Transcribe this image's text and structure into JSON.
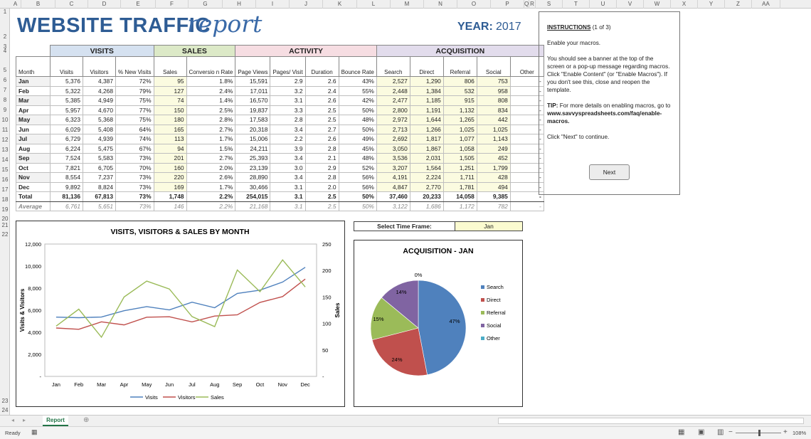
{
  "columns": [
    "A",
    "B",
    "C",
    "D",
    "E",
    "F",
    "G",
    "H",
    "I",
    "J",
    "K",
    "L",
    "M",
    "N",
    "O",
    "P",
    "Q",
    "R",
    "S",
    "T",
    "U",
    "V",
    "W",
    "X",
    "Y",
    "Z",
    "AA"
  ],
  "rows": [
    "1",
    "2",
    "3",
    "4",
    "5",
    "6",
    "7",
    "8",
    "9",
    "10",
    "11",
    "12",
    "13",
    "14",
    "15",
    "16",
    "17",
    "18",
    "19",
    "20",
    "21",
    "22",
    "23",
    "24"
  ],
  "title": {
    "main": "WEBSITE TRAFFIC",
    "script": "report"
  },
  "year": {
    "label": "YEAR:",
    "value": "2017"
  },
  "groups": {
    "visits": "VISITS",
    "sales": "SALES",
    "activity": "ACTIVITY",
    "acquisition": "ACQUISITION"
  },
  "headers": [
    "Month",
    "Visits",
    "Visitors",
    "% New Visits",
    "Sales",
    "Conversio n Rate",
    "Page Views",
    "Pages/ Visit",
    "Duration",
    "Bounce Rate",
    "Search",
    "Direct",
    "Referral",
    "Social",
    "Other"
  ],
  "table_rows": [
    [
      "Jan",
      "5,376",
      "4,387",
      "72%",
      "95",
      "1.8%",
      "15,591",
      "2.9",
      "2.6",
      "43%",
      "2,527",
      "1,290",
      "806",
      "753",
      "-"
    ],
    [
      "Feb",
      "5,322",
      "4,268",
      "79%",
      "127",
      "2.4%",
      "17,011",
      "3.2",
      "2.4",
      "55%",
      "2,448",
      "1,384",
      "532",
      "958",
      "-"
    ],
    [
      "Mar",
      "5,385",
      "4,949",
      "75%",
      "74",
      "1.4%",
      "16,570",
      "3.1",
      "2.6",
      "42%",
      "2,477",
      "1,185",
      "915",
      "808",
      "-"
    ],
    [
      "Apr",
      "5,957",
      "4,670",
      "77%",
      "150",
      "2.5%",
      "19,837",
      "3.3",
      "2.5",
      "50%",
      "2,800",
      "1,191",
      "1,132",
      "834",
      "-"
    ],
    [
      "May",
      "6,323",
      "5,368",
      "75%",
      "180",
      "2.8%",
      "17,583",
      "2.8",
      "2.5",
      "48%",
      "2,972",
      "1,644",
      "1,265",
      "442",
      "-"
    ],
    [
      "Jun",
      "6,029",
      "5,408",
      "64%",
      "165",
      "2.7%",
      "20,318",
      "3.4",
      "2.7",
      "50%",
      "2,713",
      "1,266",
      "1,025",
      "1,025",
      "-"
    ],
    [
      "Jul",
      "6,729",
      "4,939",
      "74%",
      "113",
      "1.7%",
      "15,006",
      "2.2",
      "2.6",
      "49%",
      "2,692",
      "1,817",
      "1,077",
      "1,143",
      "-"
    ],
    [
      "Aug",
      "6,224",
      "5,475",
      "67%",
      "94",
      "1.5%",
      "24,211",
      "3.9",
      "2.8",
      "45%",
      "3,050",
      "1,867",
      "1,058",
      "249",
      "-"
    ],
    [
      "Sep",
      "7,524",
      "5,583",
      "73%",
      "201",
      "2.7%",
      "25,393",
      "3.4",
      "2.1",
      "48%",
      "3,536",
      "2,031",
      "1,505",
      "452",
      "-"
    ],
    [
      "Oct",
      "7,821",
      "6,705",
      "70%",
      "160",
      "2.0%",
      "23,139",
      "3.0",
      "2.9",
      "52%",
      "3,207",
      "1,564",
      "1,251",
      "1,799",
      "-"
    ],
    [
      "Nov",
      "8,554",
      "7,237",
      "73%",
      "220",
      "2.6%",
      "28,890",
      "3.4",
      "2.8",
      "56%",
      "4,191",
      "2,224",
      "1,711",
      "428",
      "-"
    ],
    [
      "Dec",
      "9,892",
      "8,824",
      "73%",
      "169",
      "1.7%",
      "30,466",
      "3.1",
      "2.0",
      "56%",
      "4,847",
      "2,770",
      "1,781",
      "494",
      "-"
    ]
  ],
  "total_row": [
    "Total",
    "81,136",
    "67,813",
    "73%",
    "1,748",
    "2.2%",
    "254,015",
    "3.1",
    "2.5",
    "50%",
    "37,460",
    "20,233",
    "14,058",
    "9,385",
    "-"
  ],
  "average_row": [
    "Average",
    "6,761",
    "5,651",
    "73%",
    "146",
    "2.2%",
    "21,168",
    "3.1",
    "2.5",
    "50%",
    "3,122",
    "1,686",
    "1,172",
    "782",
    "-"
  ],
  "instructions": {
    "title": "INSTRUCTIONS",
    "step": "(1 of 3)",
    "p1": "Enable your macros.",
    "p2": "You should see a banner at the top of the screen or a pop-up message regarding macros. Click \"Enable Content\" (or \"Enable Macros\"). If you don't see this, close and reopen the template.",
    "tip_label": "TIP:",
    "tip_text": "For more details on enabling macros, go to",
    "tip_link": "www.savvyspreadsheets.com/faq/enable-macros.",
    "p4": "Click \"Next\" to continue.",
    "next_button": "Next"
  },
  "time_frame": {
    "label": "Select Time Frame:",
    "value": "Jan"
  },
  "chart_data": [
    {
      "type": "line",
      "title": "VISITS, VISITORS & SALES BY MONTH",
      "categories": [
        "Jan",
        "Feb",
        "Mar",
        "Apr",
        "May",
        "Jun",
        "Jul",
        "Aug",
        "Sep",
        "Oct",
        "Nov",
        "Dec"
      ],
      "ylabel": "Visits & Visitors",
      "y2label": "Sales",
      "ylim": [
        0,
        12000
      ],
      "y2lim": [
        0,
        250
      ],
      "y_ticks": [
        "-",
        "2,000",
        "4,000",
        "6,000",
        "8,000",
        "10,000",
        "12,000"
      ],
      "y2_ticks": [
        "-",
        "50",
        "100",
        "150",
        "200",
        "250"
      ],
      "series": [
        {
          "name": "Visits",
          "axis": "left",
          "color": "#4f81bd",
          "values": [
            5376,
            5322,
            5385,
            5957,
            6323,
            6029,
            6729,
            6224,
            7524,
            7821,
            8554,
            9892
          ]
        },
        {
          "name": "Visitors",
          "axis": "left",
          "color": "#c0504d",
          "values": [
            4387,
            4268,
            4949,
            4670,
            5368,
            5408,
            4939,
            5475,
            5583,
            6705,
            7237,
            8824
          ]
        },
        {
          "name": "Sales",
          "axis": "right",
          "color": "#9bbb59",
          "values": [
            95,
            127,
            74,
            150,
            180,
            165,
            113,
            94,
            201,
            160,
            220,
            169
          ]
        }
      ],
      "legend": "bottom"
    },
    {
      "type": "pie",
      "title": "ACQUISITION - JAN",
      "labels": [
        "Search",
        "Direct",
        "Referral",
        "Social",
        "Other"
      ],
      "values": [
        47,
        24,
        15,
        14,
        0
      ],
      "data_labels": [
        "47%",
        "24%",
        "15%",
        "14%",
        "0%"
      ],
      "colors": [
        "#4f81bd",
        "#c0504d",
        "#9bbb59",
        "#8064a2",
        "#4bacc6"
      ],
      "legend": "right"
    }
  ],
  "sheet_tab": "Report",
  "status": {
    "ready": "Ready",
    "zoom": "108%"
  }
}
